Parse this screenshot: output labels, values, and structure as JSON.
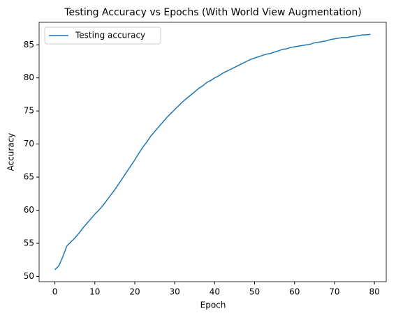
{
  "chart_data": {
    "type": "line",
    "title": "Testing Accuracy vs Epochs (With World View Augmentation)",
    "x_label": "Epoch",
    "y_label": "Accuracy",
    "x": [
      0,
      1,
      2,
      3,
      4,
      5,
      6,
      7,
      8,
      9,
      10,
      11,
      12,
      13,
      14,
      15,
      16,
      17,
      18,
      19,
      20,
      21,
      22,
      23,
      24,
      25,
      26,
      27,
      28,
      29,
      30,
      31,
      32,
      33,
      34,
      35,
      36,
      37,
      38,
      39,
      40,
      41,
      42,
      43,
      44,
      45,
      46,
      47,
      48,
      49,
      50,
      51,
      52,
      53,
      54,
      55,
      56,
      57,
      58,
      59,
      60,
      61,
      62,
      63,
      64,
      65,
      66,
      67,
      68,
      69,
      70,
      71,
      72,
      73,
      74,
      75,
      76,
      77,
      78,
      79
    ],
    "series": [
      {
        "name": "Testing accuracy",
        "color": "#1f77b4",
        "values": [
          51.0,
          51.6,
          53.0,
          54.6,
          55.2,
          55.8,
          56.5,
          57.3,
          58.0,
          58.7,
          59.4,
          60.0,
          60.7,
          61.5,
          62.3,
          63.1,
          64.0,
          64.9,
          65.8,
          66.7,
          67.6,
          68.6,
          69.5,
          70.3,
          71.2,
          71.9,
          72.6,
          73.3,
          74.0,
          74.6,
          75.2,
          75.8,
          76.4,
          76.9,
          77.4,
          77.9,
          78.4,
          78.8,
          79.3,
          79.6,
          80.0,
          80.3,
          80.7,
          81.0,
          81.3,
          81.6,
          81.9,
          82.2,
          82.5,
          82.8,
          83.0,
          83.2,
          83.4,
          83.6,
          83.7,
          83.9,
          84.1,
          84.3,
          84.4,
          84.6,
          84.7,
          84.8,
          84.9,
          85.0,
          85.1,
          85.3,
          85.4,
          85.5,
          85.6,
          85.8,
          85.9,
          86.0,
          86.1,
          86.1,
          86.2,
          86.3,
          86.4,
          86.5,
          86.5,
          86.6
        ]
      }
    ],
    "xlim": [
      -3.95,
      82.95
    ],
    "xticks": [
      0,
      10,
      20,
      30,
      40,
      50,
      60,
      70,
      80
    ],
    "ylim": [
      49.2,
      88.4
    ],
    "yticks": [
      50,
      55,
      60,
      65,
      70,
      75,
      80,
      85
    ],
    "legend": "upper left",
    "grid": false
  }
}
